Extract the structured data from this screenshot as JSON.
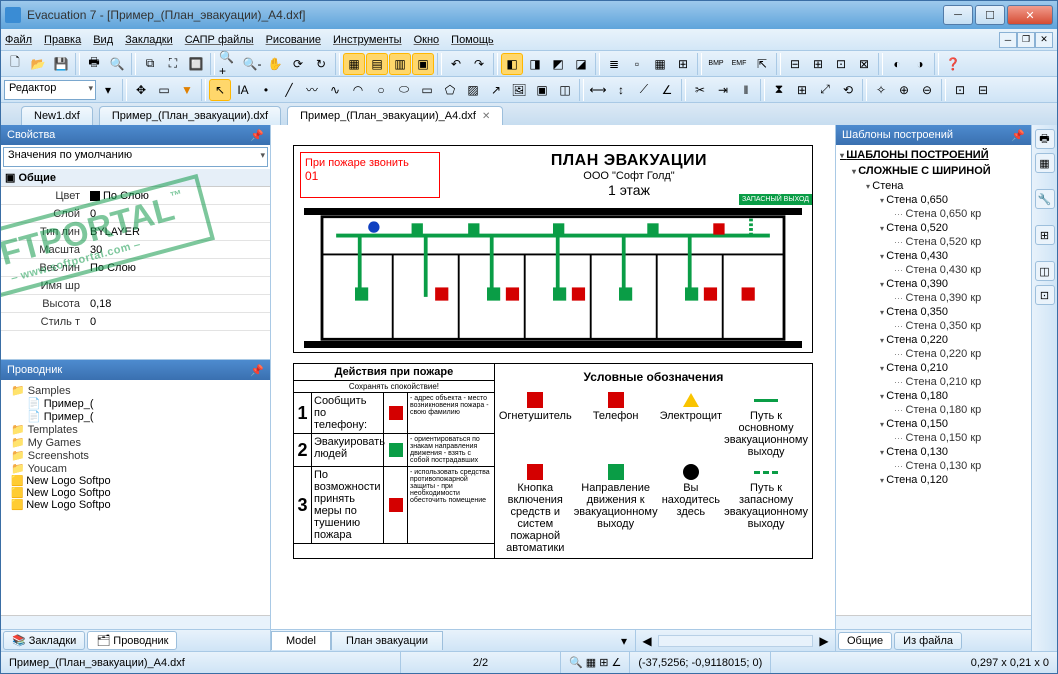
{
  "window": {
    "title": "Evacuation 7 - [Пример_(План_эвакуации)_A4.dxf]"
  },
  "menu": [
    "Файл",
    "Правка",
    "Вид",
    "Закладки",
    "САПР файлы",
    "Рисование",
    "Инструменты",
    "Окно",
    "Помощь"
  ],
  "toolbar2_combo": "Редактор",
  "doc_tabs": [
    {
      "label": "New1.dxf",
      "active": false
    },
    {
      "label": "Пример_(План_эвакуации).dxf",
      "active": false
    },
    {
      "label": "Пример_(План_эвакуации)_A4.dxf",
      "active": true
    }
  ],
  "props": {
    "title": "Свойства",
    "combo": "Значения по умолчанию",
    "category": "Общие",
    "rows": [
      {
        "k": "Цвет",
        "v": "По Слою",
        "color": true
      },
      {
        "k": "Слой",
        "v": "0"
      },
      {
        "k": "Тип лин",
        "v": "BYLAYER"
      },
      {
        "k": "Масшта",
        "v": "30"
      },
      {
        "k": "Вес лин",
        "v": "По Слою"
      },
      {
        "k": "Имя шр",
        "v": ""
      },
      {
        "k": "Высота",
        "v": "0,18"
      },
      {
        "k": "Стиль т",
        "v": "0"
      }
    ]
  },
  "explorer": {
    "title": "Проводник",
    "items": [
      {
        "t": "fld",
        "l": "Samples",
        "lvl": 0,
        "exp": true
      },
      {
        "t": "file",
        "l": "Пример_(",
        "lvl": 1
      },
      {
        "t": "file",
        "l": "Пример_(",
        "lvl": 1
      },
      {
        "t": "fld",
        "l": "Templates",
        "lvl": 0
      },
      {
        "t": "fld",
        "l": "My Games",
        "lvl": 0
      },
      {
        "t": "fld",
        "l": "Screenshots",
        "lvl": 0
      },
      {
        "t": "fld",
        "l": "Youcam",
        "lvl": 0
      },
      {
        "t": "psd",
        "l": "New Logo Softpo",
        "lvl": 0
      },
      {
        "t": "psd",
        "l": "New Logo Softpo",
        "lvl": 0
      },
      {
        "t": "psd",
        "l": "New Logo Softpo",
        "lvl": 0
      }
    ],
    "tabs": [
      {
        "l": "Закладки",
        "a": false
      },
      {
        "l": "Проводник",
        "a": true
      }
    ]
  },
  "plan": {
    "call_label": "При пожаре звонить",
    "call_num": "01",
    "title": "ПЛАН ЭВАКУАЦИИ",
    "org": "ООО \"Софт Голд\"",
    "floor": "1 этаж",
    "exit_label": "ЗАПАСНЫЙ ВЫХОД",
    "actions_title": "Действия при пожаре",
    "actions_sub": "Сохранять спокойствие!",
    "actions": [
      {
        "n": "1",
        "lbl": "Сообщить по телефону:",
        "ico": "red",
        "desc": "- адрес объекта - место возникновения пожара - свою фамилию"
      },
      {
        "n": "2",
        "lbl": "Эвакуировать людей",
        "ico": "green",
        "desc": "- ориентироваться по знакам направления движения - взять с собой пострадавших"
      },
      {
        "n": "3",
        "lbl": "По возможности принять меры по тушению пожара",
        "ico": "red",
        "desc": "- использовать средства противопожарной защиты - при необходимости обесточить помещение"
      }
    ],
    "legend_title": "Условные обозначения",
    "legend": [
      {
        "sym": "red",
        "l": "Огнетушитель"
      },
      {
        "sym": "red",
        "l": "Телефон"
      },
      {
        "sym": "tri",
        "l": "Электрощит"
      },
      {
        "sym": "gline",
        "l": "Путь к основному эвакуационному выходу"
      },
      {
        "sym": "red",
        "l": "Кнопка включения средств и систем пожарной автоматики"
      },
      {
        "sym": "green",
        "l": "Направление движения к эвакуационному выходу"
      },
      {
        "sym": "black",
        "l": "Вы находитесь здесь"
      },
      {
        "sym": "gdash",
        "l": "Путь к запасному эвакуационному выходу"
      }
    ]
  },
  "model_tabs": [
    {
      "l": "Model",
      "a": true
    },
    {
      "l": "План эвакуации",
      "a": false
    }
  ],
  "templates": {
    "title": "Шаблоны построений",
    "root": "ШАБЛОНЫ ПОСТРОЕНИЙ",
    "group": "СЛОЖНЫЕ С ШИРИНОЙ",
    "cat": "Стена",
    "walls": [
      {
        "n": "Стена 0,650",
        "s": "Стена 0,650 кр"
      },
      {
        "n": "Стена 0,520",
        "s": "Стена 0,520 кр"
      },
      {
        "n": "Стена 0,430",
        "s": "Стена 0,430 кр"
      },
      {
        "n": "Стена 0,390",
        "s": "Стена 0,390 кр"
      },
      {
        "n": "Стена 0,350",
        "s": "Стена 0,350 кр"
      },
      {
        "n": "Стена 0,220",
        "s": "Стена 0,220 кр"
      },
      {
        "n": "Стена 0,210",
        "s": "Стена 0,210 кр"
      },
      {
        "n": "Стена 0,180",
        "s": "Стена 0,180 кр"
      },
      {
        "n": "Стена 0,150",
        "s": "Стена 0,150 кр"
      },
      {
        "n": "Стена 0,130",
        "s": "Стена 0,130 кр"
      },
      {
        "n": "Стена 0,120",
        "s": ""
      }
    ],
    "tabs": [
      {
        "l": "Общие",
        "a": true
      },
      {
        "l": "Из файла",
        "a": false
      }
    ]
  },
  "status": {
    "file": "Пример_(План_эвакуации)_A4.dxf",
    "page": "2/2",
    "coords": "(-37,5256; -0,9118015; 0)",
    "dims": "0,297 x 0,21 x 0"
  },
  "colors": {
    "accent": "#3a70b0",
    "green": "#0a9d46",
    "red": "#d40000"
  }
}
